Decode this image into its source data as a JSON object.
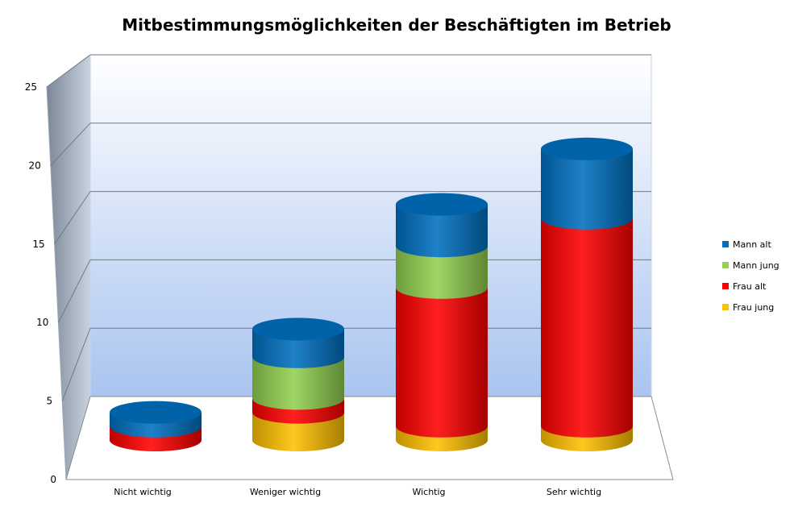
{
  "chart_data": {
    "type": "bar",
    "stacked": true,
    "style": "3d-cylinder",
    "title": "Mitbestimmungsmöglichkeiten der Beschäftigten im Betrieb",
    "xlabel": "",
    "ylabel": "",
    "categories": [
      "Nicht wichtig",
      "Weniger wichtig",
      "Wichtig",
      "Sehr wichtig"
    ],
    "ylim": [
      0,
      25
    ],
    "yticks": [
      "0",
      "5",
      "10",
      "15",
      "20",
      "25"
    ],
    "grid": true,
    "legend_position": "right",
    "series": [
      {
        "name": "Frau jung",
        "color": "#ffc000",
        "values": [
          0,
          2,
          1,
          1
        ]
      },
      {
        "name": "Frau alt",
        "color": "#ff0000",
        "values": [
          1,
          1,
          10,
          15
        ]
      },
      {
        "name": "Mann jung",
        "color": "#92d050",
        "values": [
          0,
          3,
          3,
          0
        ]
      },
      {
        "name": "Mann alt",
        "color": "#0070c0",
        "values": [
          1,
          2,
          3,
          5
        ]
      }
    ],
    "legend_order": [
      "Mann alt",
      "Mann jung",
      "Frau alt",
      "Frau jung"
    ]
  }
}
